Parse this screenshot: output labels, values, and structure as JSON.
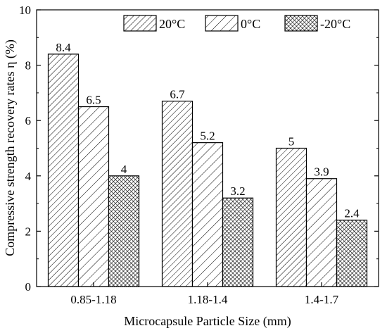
{
  "chart_data": {
    "type": "bar",
    "title": "",
    "xlabel": "Microcapsule Particle Size (mm)",
    "ylabel": "Compressive strength recovery rates η (%)",
    "categories": [
      "0.85-1.18",
      "1.18-1.4",
      "1.4-1.7"
    ],
    "series": [
      {
        "name": "20°C",
        "values": [
          8.4,
          6.7,
          5
        ],
        "labels": [
          "8.4",
          "6.7",
          "5"
        ],
        "pattern": "hatch-dense"
      },
      {
        "name": "0°C",
        "values": [
          6.5,
          5.2,
          3.9
        ],
        "labels": [
          "6.5",
          "5.2",
          "3.9"
        ],
        "pattern": "hatch-sparse"
      },
      {
        "name": "-20°C",
        "values": [
          4,
          3.2,
          2.4
        ],
        "labels": [
          "4",
          "3.2",
          "2.4"
        ],
        "pattern": "crosshatch"
      }
    ],
    "ylim": [
      0,
      10
    ],
    "yticks": [
      "0",
      "2",
      "4",
      "6",
      "8",
      "10"
    ],
    "legend_position": "top-right",
    "grid": false
  }
}
